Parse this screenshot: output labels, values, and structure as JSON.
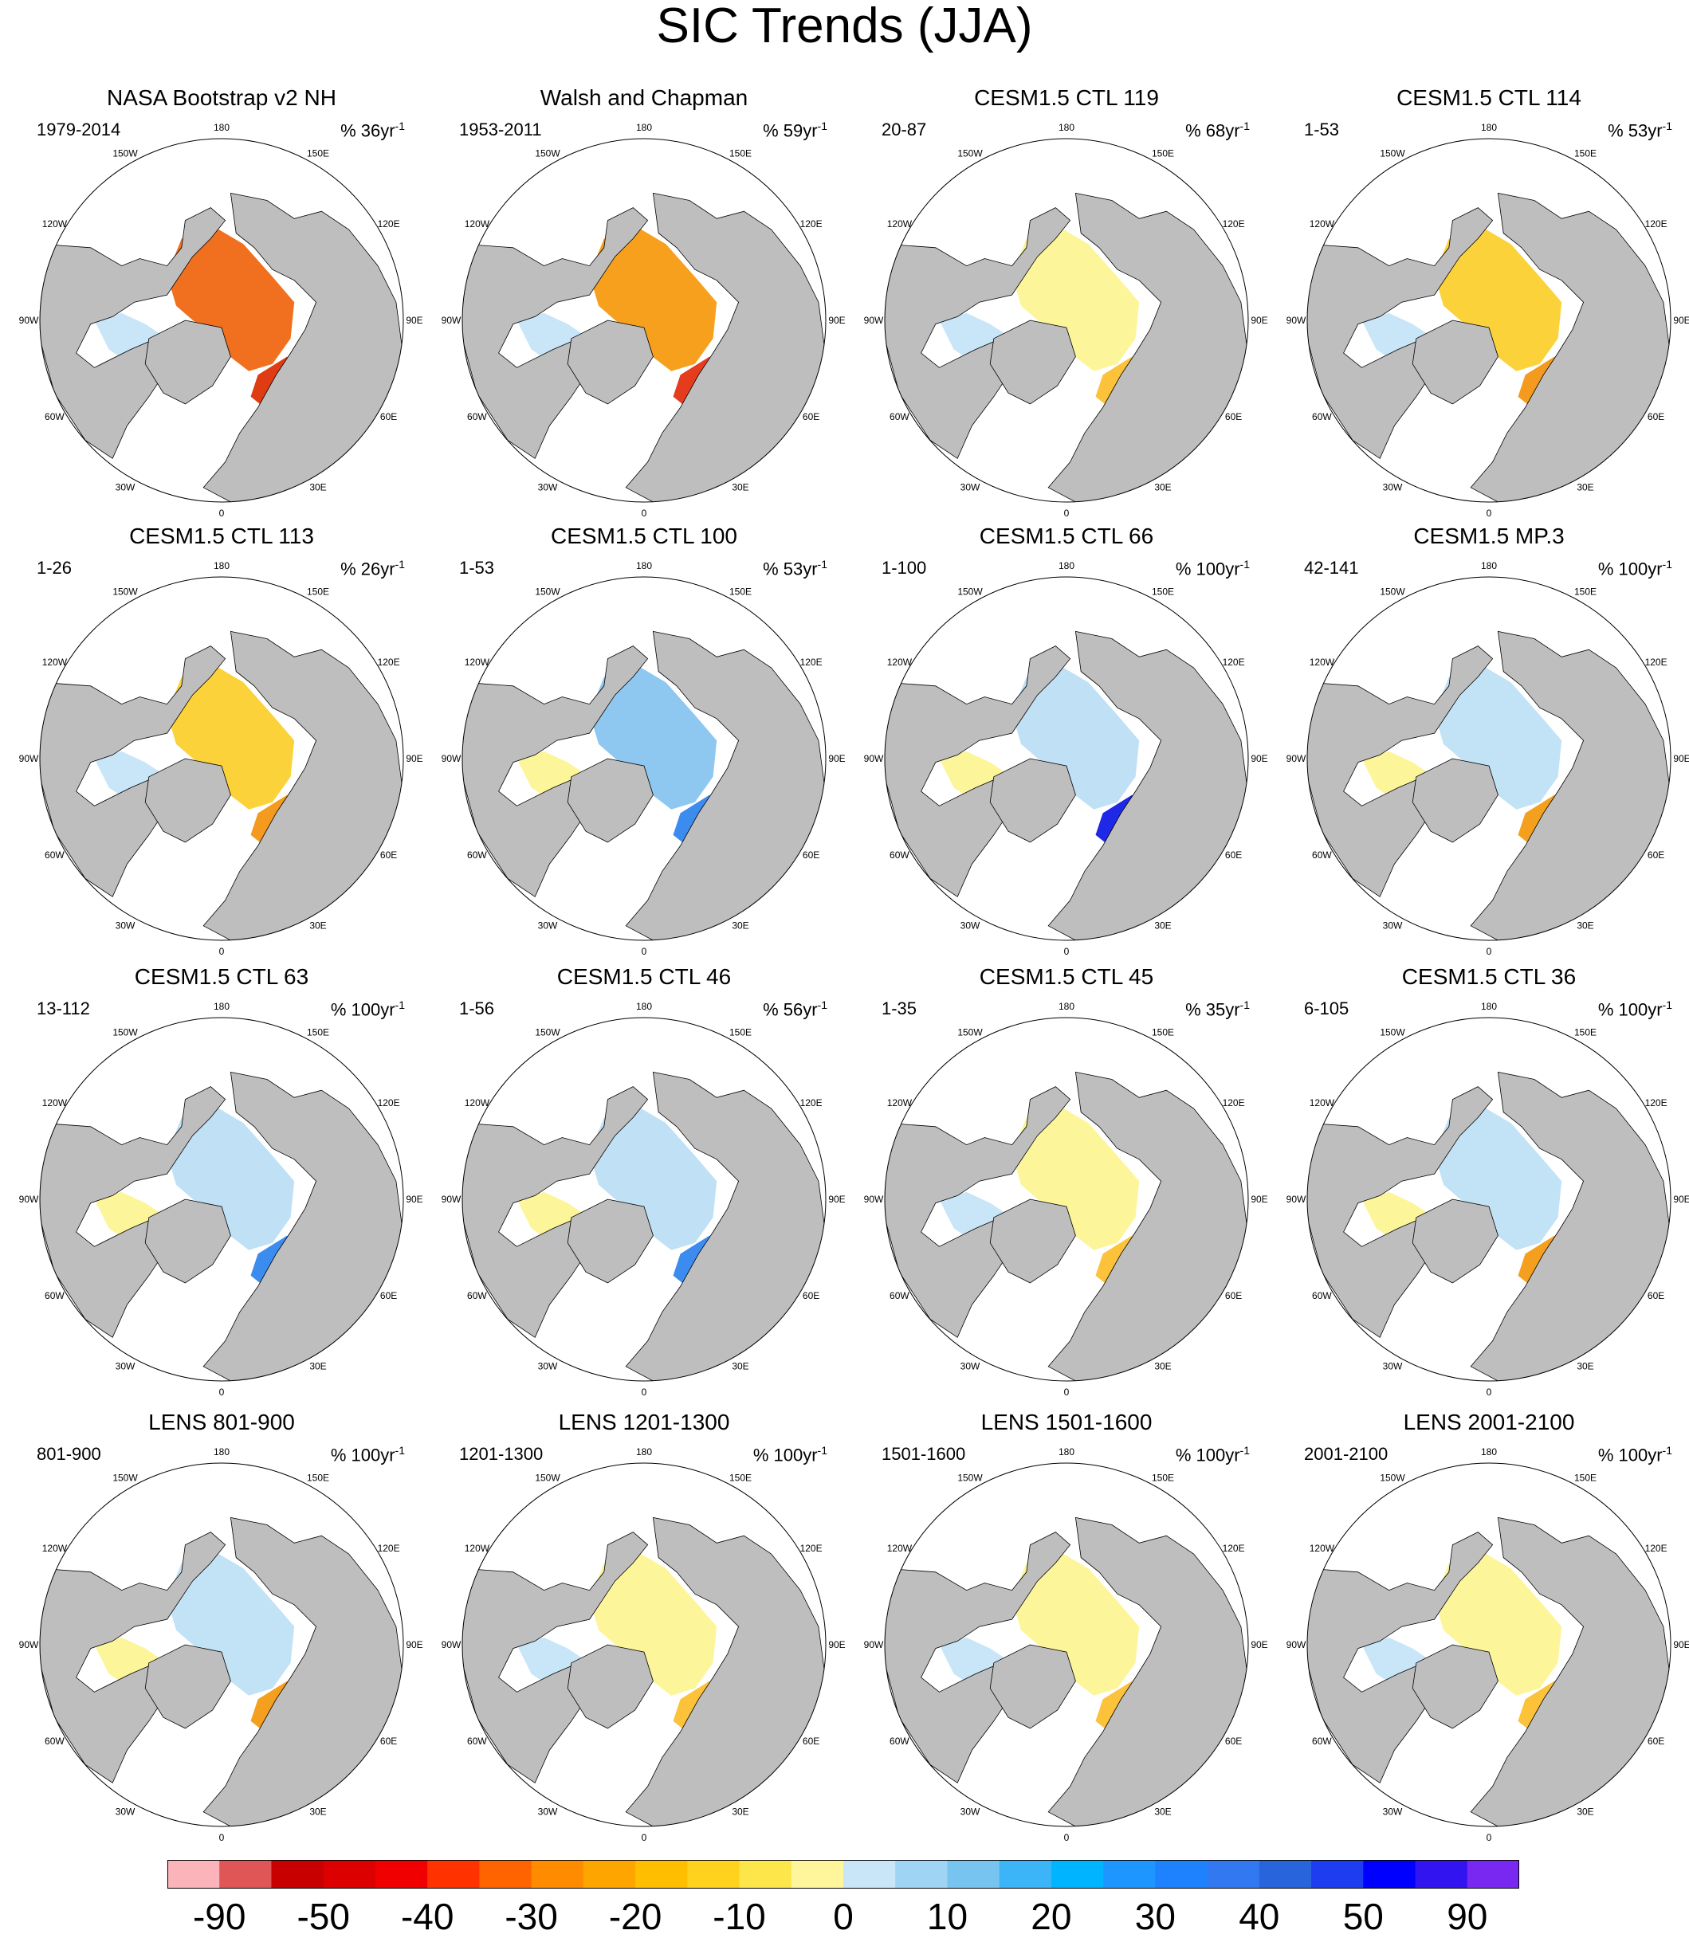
{
  "figure": {
    "title": "SIC Trends (JJA)"
  },
  "panels": [
    {
      "title": "NASA Bootstrap v2 NH",
      "period": "1979-2014",
      "units_prefix": "% 36yr",
      "units_exp": "-1",
      "pattern": "obs1",
      "fill": "#f07020"
    },
    {
      "title": "Walsh and Chapman",
      "period": "1953-2011",
      "units_prefix": "% 59yr",
      "units_exp": "-1",
      "pattern": "obs2",
      "fill": "#f6a01e"
    },
    {
      "title": "CESM1.5 CTL 119",
      "period": "20-87",
      "units_prefix": "% 68yr",
      "units_exp": "-1",
      "pattern": "mix_yellow",
      "fill": "#fdf59a"
    },
    {
      "title": "CESM1.5 CTL 114",
      "period": "1-53",
      "units_prefix": "% 53yr",
      "units_exp": "-1",
      "pattern": "mix_orange",
      "fill": "#fbd23a"
    },
    {
      "title": "CESM1.5 CTL 113",
      "period": "1-26",
      "units_prefix": "% 26yr",
      "units_exp": "-1",
      "pattern": "mix_orange",
      "fill": "#fbd23a"
    },
    {
      "title": "CESM1.5 CTL 100",
      "period": "1-53",
      "units_prefix": "% 53yr",
      "units_exp": "-1",
      "pattern": "blue",
      "fill": "#8ec8f0"
    },
    {
      "title": "CESM1.5 CTL 66",
      "period": "1-100",
      "units_prefix": "% 100yr",
      "units_exp": "-1",
      "pattern": "blue_strong",
      "fill": "#bfe0f5"
    },
    {
      "title": "CESM1.5 MP.3",
      "period": "42-141",
      "units_prefix": "% 100yr",
      "units_exp": "-1",
      "pattern": "mix_blue",
      "fill": "#c2e2f6"
    },
    {
      "title": "CESM1.5 CTL 63",
      "period": "13-112",
      "units_prefix": "% 100yr",
      "units_exp": "-1",
      "pattern": "blue",
      "fill": "#bfe0f5"
    },
    {
      "title": "CESM1.5 CTL 46",
      "period": "1-56",
      "units_prefix": "% 56yr",
      "units_exp": "-1",
      "pattern": "blue",
      "fill": "#bfe0f5"
    },
    {
      "title": "CESM1.5 CTL 45",
      "period": "1-35",
      "units_prefix": "% 35yr",
      "units_exp": "-1",
      "pattern": "mix_yellow",
      "fill": "#fdf59a"
    },
    {
      "title": "CESM1.5 CTL 36",
      "period": "6-105",
      "units_prefix": "% 100yr",
      "units_exp": "-1",
      "pattern": "mix_blue",
      "fill": "#c2e2f6"
    },
    {
      "title": "LENS 801-900",
      "period": "801-900",
      "units_prefix": "% 100yr",
      "units_exp": "-1",
      "pattern": "mix_blue",
      "fill": "#c2e2f6"
    },
    {
      "title": "LENS 1201-1300",
      "period": "1201-1300",
      "units_prefix": "% 100yr",
      "units_exp": "-1",
      "pattern": "mix_yellow",
      "fill": "#fdf59a"
    },
    {
      "title": "LENS 1501-1600",
      "period": "1501-1600",
      "units_prefix": "% 100yr",
      "units_exp": "-1",
      "pattern": "mix_yellow",
      "fill": "#fdf59a"
    },
    {
      "title": "LENS 2001-2100",
      "period": "2001-2100",
      "units_prefix": "% 100yr",
      "units_exp": "-1",
      "pattern": "mix_yellow",
      "fill": "#fdf59a"
    }
  ],
  "map_labels": {
    "lon_labels": [
      "180",
      "150E",
      "120E",
      "90E",
      "60E",
      "30E",
      "0",
      "30W",
      "60W",
      "90W",
      "120W",
      "150W"
    ]
  },
  "colorbar": {
    "colors": [
      "#fbb4b9",
      "#e05555",
      "#c80000",
      "#dc0000",
      "#f00000",
      "#ff3200",
      "#ff6400",
      "#ff8c00",
      "#ffa500",
      "#ffbe00",
      "#ffd21e",
      "#fde64a",
      "#fff59a",
      "#c8e6f8",
      "#a0d4f4",
      "#78c4f0",
      "#3cb4f8",
      "#00b4ff",
      "#1e96ff",
      "#1e82ff",
      "#3278f0",
      "#2864dc",
      "#1e3cf0",
      "#0000ff",
      "#3214f0",
      "#7828f0"
    ],
    "labels": [
      "-90",
      "-50",
      "-40",
      "-30",
      "-20",
      "-10",
      "0",
      "10",
      "20",
      "30",
      "40",
      "50",
      "90"
    ]
  }
}
